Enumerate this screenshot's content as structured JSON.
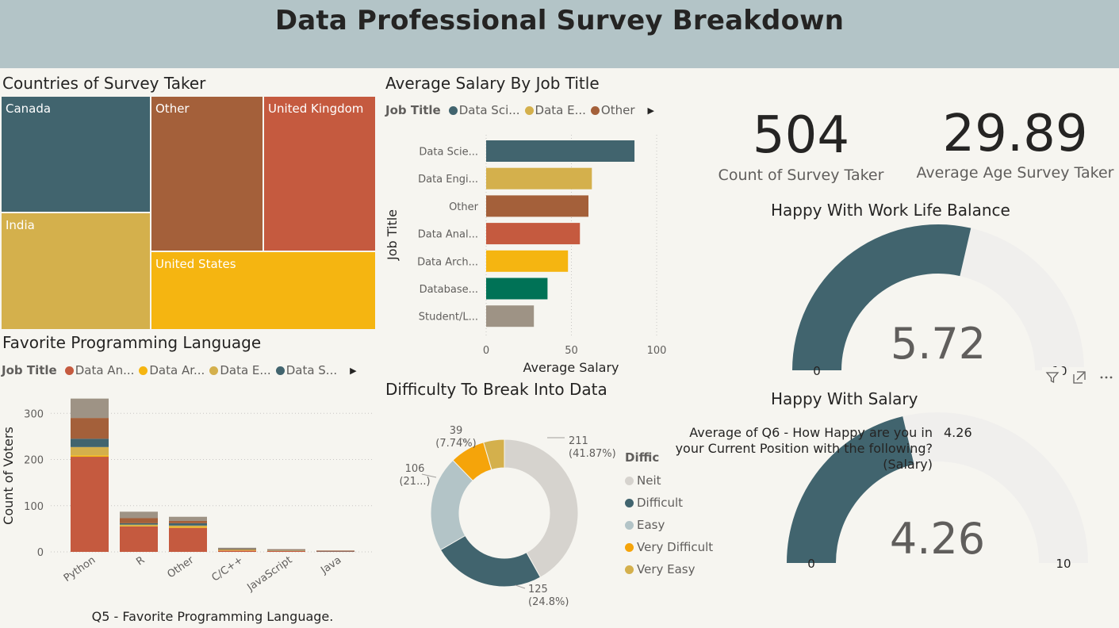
{
  "header": {
    "title": "Data Professional Survey Breakdown"
  },
  "treemap": {
    "title": "Countries of Survey Taker",
    "cells": [
      {
        "label": "Canada",
        "color": "#41646e"
      },
      {
        "label": "Other",
        "color": "#a4603a"
      },
      {
        "label": "United Kingdom",
        "color": "#c55a3f"
      },
      {
        "label": "India",
        "color": "#d4b04c"
      },
      {
        "label": "United States",
        "color": "#f5b511"
      }
    ]
  },
  "salary_chart": {
    "title": "Average Salary By Job Title",
    "legend_title": "Job Title",
    "legend": [
      {
        "label": "Data Sci...",
        "color": "#41646e"
      },
      {
        "label": "Data E...",
        "color": "#d4b04c"
      },
      {
        "label": "Other",
        "color": "#a4603a"
      }
    ]
  },
  "language_chart": {
    "title": "Favorite Programming Language",
    "legend_title": "Job Title",
    "legend": [
      {
        "label": "Data An...",
        "color": "#c55a3f"
      },
      {
        "label": "Data Ar...",
        "color": "#f5b511"
      },
      {
        "label": "Data E...",
        "color": "#d4b04c"
      },
      {
        "label": "Data S...",
        "color": "#41646e"
      }
    ]
  },
  "difficulty_chart": {
    "title": "Difficulty To Break Into Data",
    "legend_title": "Diffic",
    "legend": [
      {
        "label": "Neit",
        "color": "#d6d3ce"
      },
      {
        "label": "Difficult",
        "color": "#41646e"
      },
      {
        "label": "Easy",
        "color": "#b3c4c7"
      },
      {
        "label": "Very Difficult",
        "color": "#f5a40a"
      },
      {
        "label": "Very Easy",
        "color": "#d4b04c"
      }
    ]
  },
  "kpis": [
    {
      "value": "504",
      "label": "Count of Survey Taker"
    },
    {
      "value": "29.89",
      "label": "Average Age Survey Taker"
    }
  ],
  "gauge_worklife": {
    "title": "Happy With Work Life Balance",
    "value_text": "5.72",
    "min_text": "0",
    "max_text": "10"
  },
  "gauge_salary": {
    "title": "Happy With Salary",
    "tooltip_label": "Average of Q6 - How Happy are you in your Current Position with the following? (Salary)",
    "tooltip_value": "4.26",
    "value_text": "4.26",
    "min_text": "0",
    "max_text": "10"
  },
  "chart_data": [
    {
      "type": "treemap",
      "title": "Countries of Survey Taker",
      "categories": [
        "Canada",
        "Other",
        "United Kingdom",
        "India",
        "United States"
      ]
    },
    {
      "type": "bar",
      "orientation": "horizontal",
      "title": "Average Salary By Job Title",
      "ylabel": "Job Title",
      "xlabel": "Average Salary",
      "categories": [
        "Data Scie...",
        "Data Engi...",
        "Other",
        "Data Anal...",
        "Data Arch...",
        "Database...",
        "Student/L..."
      ],
      "values": [
        87,
        62,
        60,
        55,
        48,
        36,
        28
      ],
      "colors": [
        "#41646e",
        "#d4b04c",
        "#a4603a",
        "#c55a3f",
        "#f5b511",
        "#007256",
        "#9e9385"
      ],
      "xlim": [
        0,
        100
      ],
      "xticks": [
        "0",
        "50",
        "100"
      ]
    },
    {
      "type": "bar",
      "stacked": true,
      "title": "Favorite Programming Language",
      "xlabel": "Q5 - Favorite Programming Language.",
      "ylabel": "Count of Voters",
      "categories": [
        "Python",
        "R",
        "Other",
        "C/C++",
        "JavaScript",
        "Java"
      ],
      "series": [
        {
          "name": "Data An...",
          "color": "#c55a3f",
          "values": [
            206,
            55,
            52,
            3,
            2,
            1
          ]
        },
        {
          "name": "Data Ar...",
          "color": "#f5b511",
          "values": [
            3,
            1,
            2,
            1,
            0,
            0
          ]
        },
        {
          "name": "Data E...",
          "color": "#d4b04c",
          "values": [
            18,
            3,
            3,
            1,
            1,
            0
          ]
        },
        {
          "name": "Data S...",
          "color": "#41646e",
          "values": [
            18,
            3,
            5,
            1,
            1,
            1
          ]
        },
        {
          "color": "#a4603a",
          "values": [
            45,
            11,
            5,
            1,
            1,
            1
          ]
        },
        {
          "color": "#9e9385",
          "values": [
            42,
            14,
            9,
            2,
            1,
            0
          ]
        }
      ],
      "ylim": [
        0,
        340
      ],
      "yticks": [
        "0",
        "100",
        "200",
        "300"
      ]
    },
    {
      "type": "pie",
      "donut": true,
      "title": "Difficulty To Break Into Data",
      "categories": [
        "Neit",
        "Difficult",
        "Easy",
        "Very Difficult",
        "Very Easy"
      ],
      "values": [
        211,
        125,
        106,
        39,
        23
      ],
      "colors": [
        "#d6d3ce",
        "#41646e",
        "#b3c4c7",
        "#f5a40a",
        "#d4b04c"
      ],
      "labels": [
        {
          "count": "211",
          "pct": "(41.87%)"
        },
        {
          "count": "125",
          "pct": "(24.8%)"
        },
        {
          "count": "106",
          "pct": "(21...)"
        },
        {
          "count": "39",
          "pct": "(7.74%)"
        }
      ]
    },
    {
      "type": "gauge",
      "title": "Happy With Work Life Balance",
      "value": 5.72,
      "min": 0,
      "max": 10,
      "color": "#41646e"
    },
    {
      "type": "gauge",
      "title": "Happy With Salary",
      "value": 4.26,
      "min": 0,
      "max": 10,
      "color": "#41646e"
    }
  ]
}
